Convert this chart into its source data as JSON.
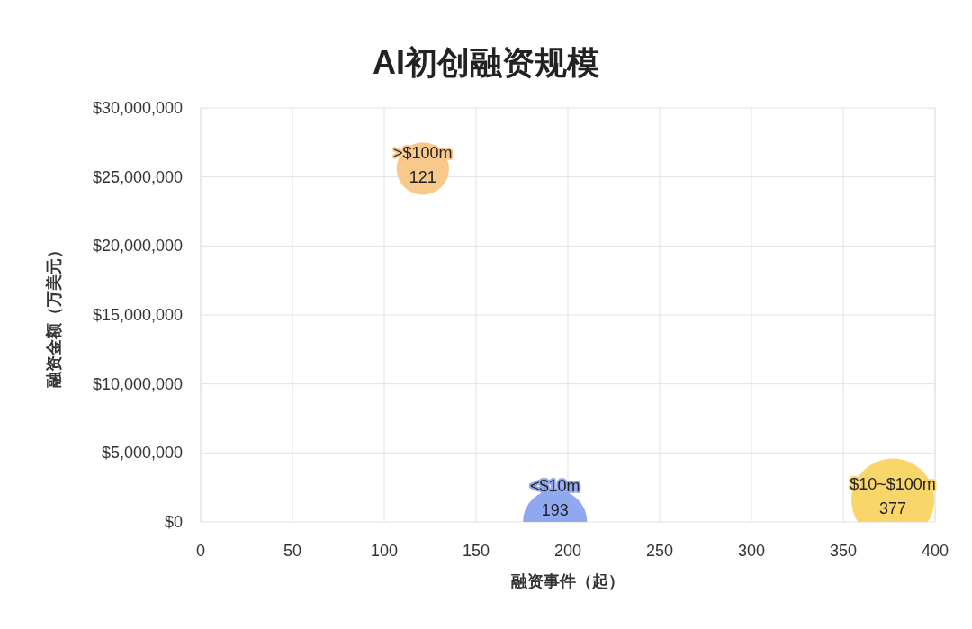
{
  "chart_data": {
    "type": "bubble",
    "title": "AI初创融资规模",
    "xlabel": "融资事件（起）",
    "ylabel": "融资金额（万美元）",
    "xlim": [
      0,
      400
    ],
    "xticks": [
      0,
      50,
      100,
      150,
      200,
      250,
      300,
      350,
      400
    ],
    "ylim": [
      0,
      30000000
    ],
    "yticks": [
      {
        "value": 0,
        "label": "$0"
      },
      {
        "value": 5000000,
        "label": "$5,000,000"
      },
      {
        "value": 10000000,
        "label": "$10,000,000"
      },
      {
        "value": 15000000,
        "label": "$15,000,000"
      },
      {
        "value": 20000000,
        "label": "$20,000,000"
      },
      {
        "value": 25000000,
        "label": "$25,000,000"
      },
      {
        "value": 30000000,
        "label": "$30,000,000"
      }
    ],
    "grid": true,
    "series": [
      {
        "name": ">$100m",
        "color": "#f9c98c",
        "x": [
          121
        ],
        "values": [
          25600000
        ],
        "sizes": [
          0.4
        ]
      },
      {
        "name": "<$10m",
        "color": "#8fa8f0",
        "x": [
          193
        ],
        "values": [
          0
        ],
        "sizes": [
          0.6
        ]
      },
      {
        "name": "$10~$100m",
        "color": "#f8d66a",
        "x": [
          377
        ],
        "values": [
          1600000
        ],
        "sizes": [
          1
        ]
      }
    ],
    "annotations": [
      {
        "text": "121",
        "x": 121,
        "y": 25600000
      },
      {
        "text": "193",
        "x": 193,
        "y": 0
      },
      {
        "text": "377",
        "x": 377,
        "y": 1600000
      }
    ]
  }
}
